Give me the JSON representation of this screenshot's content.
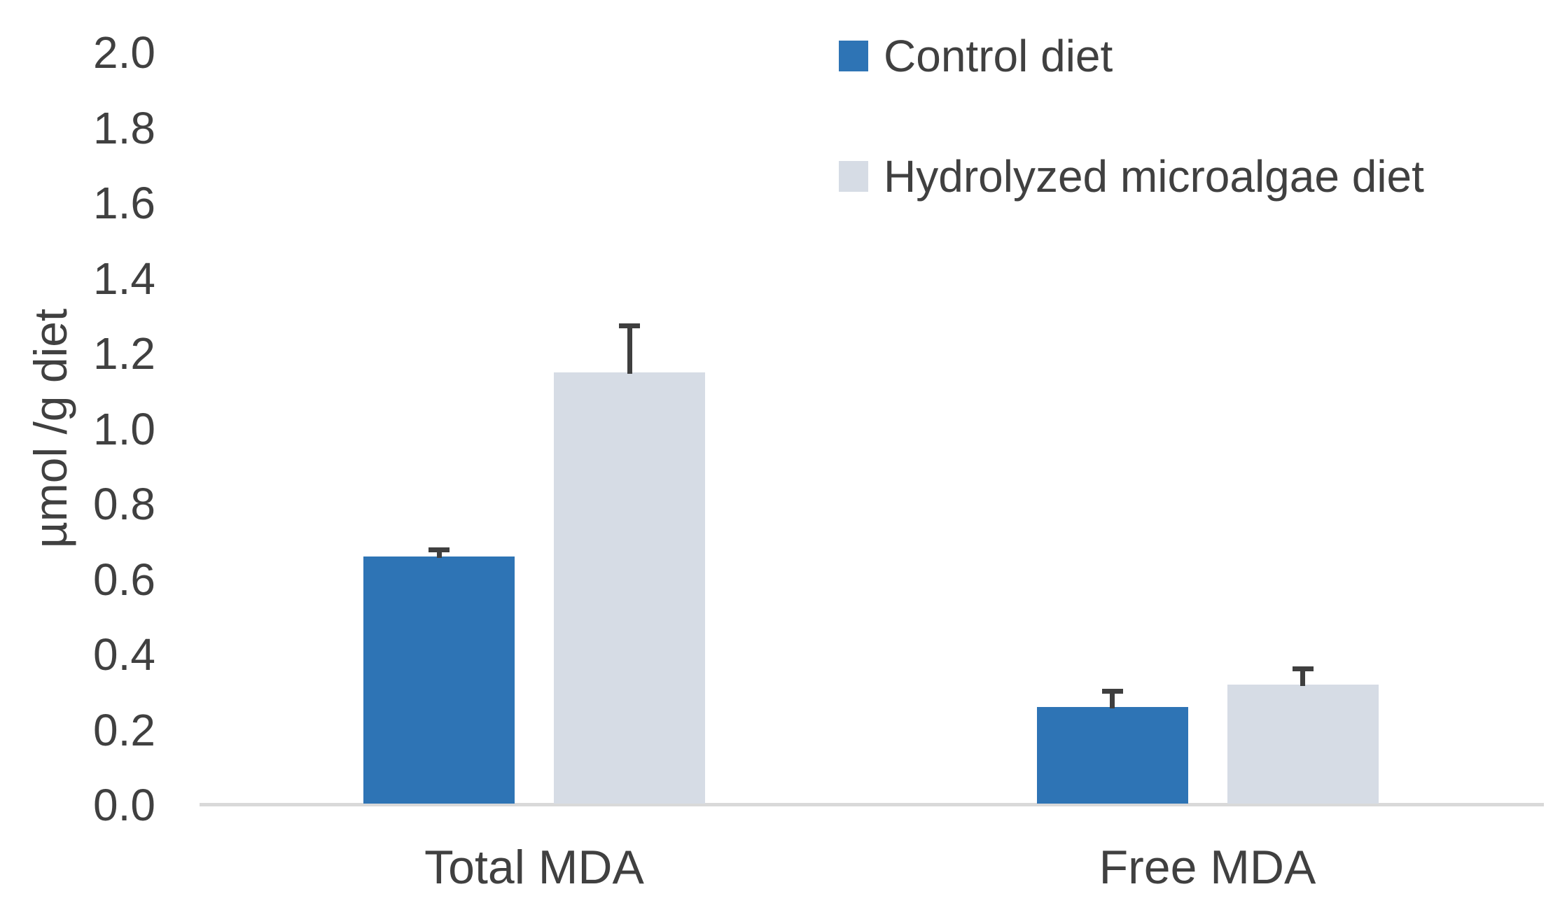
{
  "chart_data": {
    "type": "bar",
    "categories": [
      "Total MDA",
      "Free MDA"
    ],
    "series": [
      {
        "name": "Control diet",
        "color": "#2E74B5",
        "values": [
          0.66,
          0.26
        ],
        "errors": [
          0.015,
          0.04
        ]
      },
      {
        "name": "Hydrolyzed microalgae diet",
        "color": "#D6DCE5",
        "values": [
          1.15,
          0.32
        ],
        "errors": [
          0.12,
          0.04
        ]
      }
    ],
    "title": "",
    "xlabel": "",
    "ylabel": "µmol /g diet",
    "ylim": [
      0.0,
      2.0
    ],
    "ytick_labels": [
      "2.0",
      "1.8",
      "1.6",
      "1.4",
      "1.2",
      "1.0",
      "0.8",
      "0.6",
      "0.4",
      "0.2",
      "0.0"
    ],
    "grid": false,
    "legend_position": "top-right",
    "colors": {
      "axis_line": "#D9D9D9",
      "error_bar": "#3F3F3F",
      "text": "#404040"
    }
  }
}
